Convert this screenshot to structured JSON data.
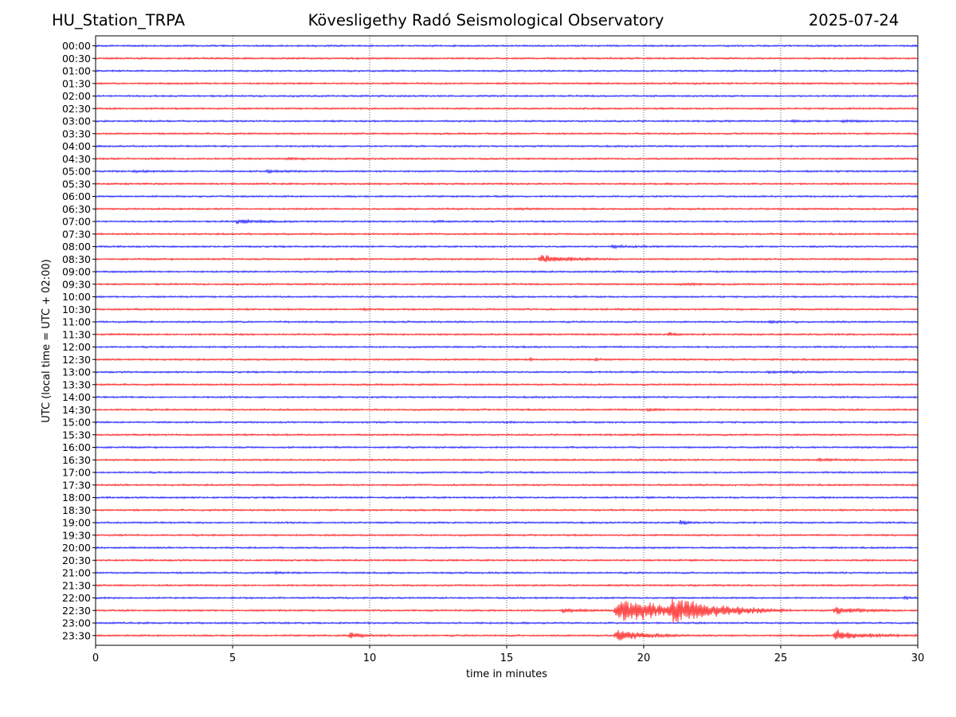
{
  "header": {
    "station": "HU_Station_TRPA",
    "observatory": "Kövesligethy Radó Seismological Observatory",
    "date": "2025-07-24"
  },
  "chart_data": {
    "type": "line",
    "title": "Kövesligethy Radó Seismological Observatory",
    "xlabel": "time in minutes",
    "ylabel": "UTC (local time = UTC + 02:00)",
    "xlim": [
      0,
      30
    ],
    "x_ticks": [
      "0",
      "5",
      "10",
      "15",
      "20",
      "25",
      "30"
    ],
    "grid": "vertical dotted at 5-minute intervals",
    "colors": {
      "even_rows": "#0000ff",
      "odd_rows": "#ff0000",
      "axis": "#000000",
      "grid": "#000000"
    },
    "rows": [
      "00:00",
      "00:30",
      "01:00",
      "01:30",
      "02:00",
      "02:30",
      "03:00",
      "03:30",
      "04:00",
      "04:30",
      "05:00",
      "05:30",
      "06:00",
      "06:30",
      "07:00",
      "07:30",
      "08:00",
      "08:30",
      "09:00",
      "09:30",
      "10:00",
      "10:30",
      "11:00",
      "11:30",
      "12:00",
      "12:30",
      "13:00",
      "13:30",
      "14:00",
      "14:30",
      "15:00",
      "15:30",
      "16:00",
      "16:30",
      "17:00",
      "17:30",
      "18:00",
      "18:30",
      "19:00",
      "19:30",
      "20:00",
      "20:30",
      "21:00",
      "21:30",
      "22:00",
      "22:30",
      "23:00",
      "23:30"
    ],
    "events": [
      {
        "row": "03:00",
        "start": 25.4,
        "duration": 1.4,
        "amp": 0.3
      },
      {
        "row": "03:00",
        "start": 27.2,
        "duration": 1.2,
        "amp": 0.4
      },
      {
        "row": "04:30",
        "start": 6.9,
        "duration": 1.2,
        "amp": 0.45
      },
      {
        "row": "05:00",
        "start": 1.3,
        "duration": 1.4,
        "amp": 0.35
      },
      {
        "row": "05:00",
        "start": 6.2,
        "duration": 1.6,
        "amp": 0.5
      },
      {
        "row": "05:00",
        "start": 20.7,
        "duration": 0.3,
        "amp": 0.3
      },
      {
        "row": "06:30",
        "start": 15.3,
        "duration": 1.2,
        "amp": 0.25
      },
      {
        "row": "07:00",
        "start": 5.1,
        "duration": 2.3,
        "amp": 0.75
      },
      {
        "row": "07:00",
        "start": 12.3,
        "duration": 1.0,
        "amp": 0.35
      },
      {
        "row": "08:00",
        "start": 18.8,
        "duration": 1.6,
        "amp": 0.5
      },
      {
        "row": "08:30",
        "start": 16.15,
        "duration": 2.8,
        "amp": 1.7
      },
      {
        "row": "09:30",
        "start": 21.3,
        "duration": 2.2,
        "amp": 0.45
      },
      {
        "row": "10:30",
        "start": 9.75,
        "duration": 0.4,
        "amp": 0.45
      },
      {
        "row": "11:00",
        "start": 24.5,
        "duration": 1.5,
        "amp": 0.3
      },
      {
        "row": "11:30",
        "start": 20.85,
        "duration": 0.8,
        "amp": 0.85
      },
      {
        "row": "12:30",
        "start": 15.85,
        "duration": 0.3,
        "amp": 0.65
      },
      {
        "row": "12:30",
        "start": 18.2,
        "duration": 0.3,
        "amp": 0.6
      },
      {
        "row": "13:00",
        "start": 24.5,
        "duration": 3.0,
        "amp": 0.4
      },
      {
        "row": "14:30",
        "start": 20.1,
        "duration": 1.2,
        "amp": 0.35
      },
      {
        "row": "15:00",
        "start": 15.0,
        "duration": 0.5,
        "amp": 0.3
      },
      {
        "row": "16:30",
        "start": 26.3,
        "duration": 2.0,
        "amp": 0.4
      },
      {
        "row": "19:00",
        "start": 21.3,
        "duration": 0.8,
        "amp": 0.75
      },
      {
        "row": "21:00",
        "start": 6.5,
        "duration": 1.2,
        "amp": 0.3
      },
      {
        "row": "22:00",
        "start": 29.5,
        "duration": 0.5,
        "amp": 0.55
      },
      {
        "row": "22:30",
        "start": 17.0,
        "duration": 2.0,
        "amp": 0.7
      },
      {
        "row": "22:30",
        "start": 18.9,
        "duration": 5.5,
        "amp": 5.0
      },
      {
        "row": "22:30",
        "start": 20.9,
        "duration": 4.5,
        "amp": 4.5
      },
      {
        "row": "22:30",
        "start": 26.9,
        "duration": 2.5,
        "amp": 1.3
      },
      {
        "row": "23:30",
        "start": 9.2,
        "duration": 1.6,
        "amp": 1.1
      },
      {
        "row": "23:30",
        "start": 18.9,
        "duration": 2.8,
        "amp": 2.6
      },
      {
        "row": "23:30",
        "start": 26.9,
        "duration": 3.1,
        "amp": 2.0
      }
    ]
  }
}
